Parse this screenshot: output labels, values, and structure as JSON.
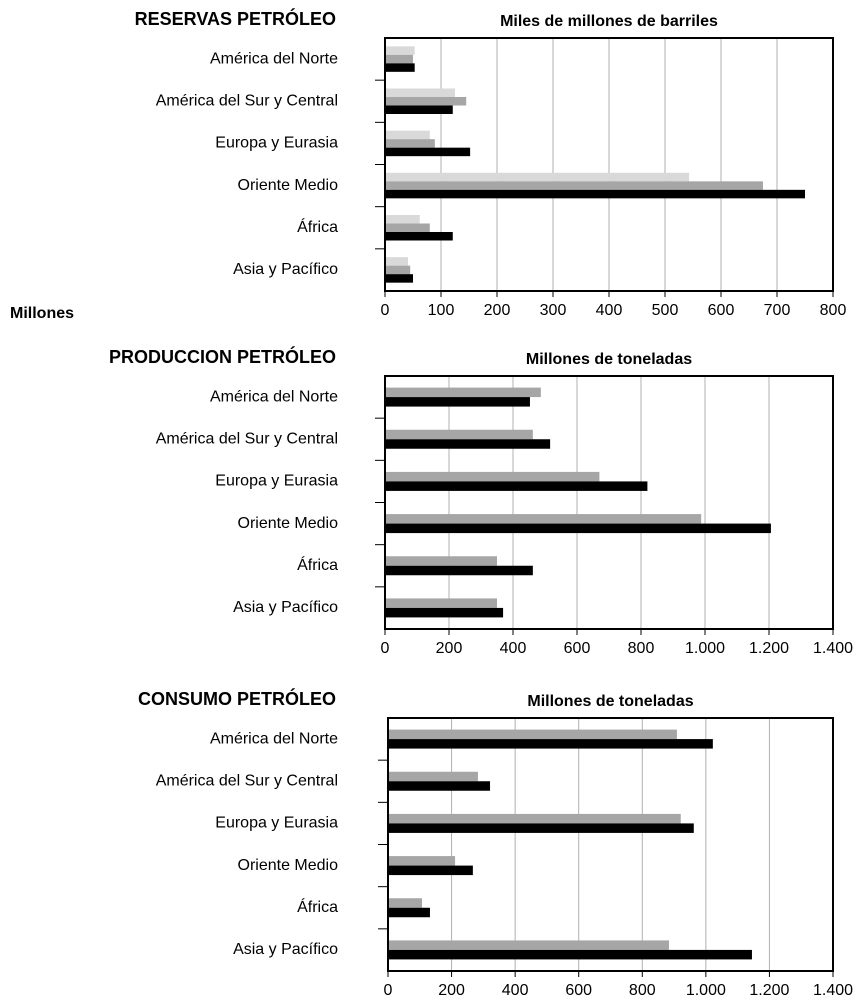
{
  "chart_data": [
    {
      "type": "hbar",
      "section_title": "RESERVAS PETRÓLEO",
      "title": "Miles de millones de barriles",
      "annotation": "Millones",
      "categories": [
        "América del Norte",
        "América del Sur y Central",
        "Europa y Eurasia",
        "Oriente Medio",
        "África",
        "Asia y Pacífico"
      ],
      "series": [
        {
          "color": "#d9d9d9",
          "values": [
            53,
            125,
            80,
            543,
            62,
            41
          ]
        },
        {
          "color": "#a6a6a6",
          "values": [
            50,
            145,
            89,
            675,
            80,
            45
          ]
        },
        {
          "color": "#000000",
          "values": [
            53,
            121,
            152,
            750,
            121,
            50
          ]
        }
      ],
      "xlim": [
        0,
        800
      ],
      "xticks": [
        0,
        100,
        200,
        300,
        400,
        500,
        600,
        700,
        800
      ],
      "grid": true
    },
    {
      "type": "hbar",
      "section_title": "PRODUCCION PETRÓLEO",
      "title": "Millones de toneladas",
      "categories": [
        "América del Norte",
        "América del Sur y Central",
        "Europa y Eurasia",
        "Oriente Medio",
        "África",
        "Asia y Pacífico"
      ],
      "series": [
        {
          "color": "#a6a6a6",
          "values": [
            487,
            462,
            670,
            988,
            350,
            350
          ]
        },
        {
          "color": "#000000",
          "values": [
            453,
            516,
            820,
            1206,
            462,
            369
          ]
        }
      ],
      "xlim": [
        0,
        1400
      ],
      "xticks": [
        0,
        200,
        400,
        600,
        800,
        {
          "value": 1000,
          "label": "1.000"
        },
        {
          "value": 1200,
          "label": "1.200"
        },
        {
          "value": 1400,
          "label": "1.400"
        }
      ],
      "grid": true
    },
    {
      "type": "hbar",
      "section_title": "CONSUMO PETRÓLEO",
      "title": "Millones de toneladas",
      "categories": [
        "América del Norte",
        "América del Sur y Central",
        "Europa y Eurasia",
        "Oriente Medio",
        "África",
        "Asia y Pacífico"
      ],
      "series": [
        {
          "color": "#a6a6a6",
          "values": [
            909,
            283,
            921,
            211,
            107,
            884
          ]
        },
        {
          "color": "#000000",
          "values": [
            1022,
            321,
            962,
            267,
            132,
            1145
          ]
        }
      ],
      "xlim": [
        0,
        1400
      ],
      "xticks": [
        0,
        200,
        400,
        600,
        800,
        {
          "value": 1000,
          "label": "1.000"
        },
        {
          "value": 1200,
          "label": "1.200"
        },
        {
          "value": 1400,
          "label": "1.400"
        }
      ],
      "grid": true
    }
  ]
}
